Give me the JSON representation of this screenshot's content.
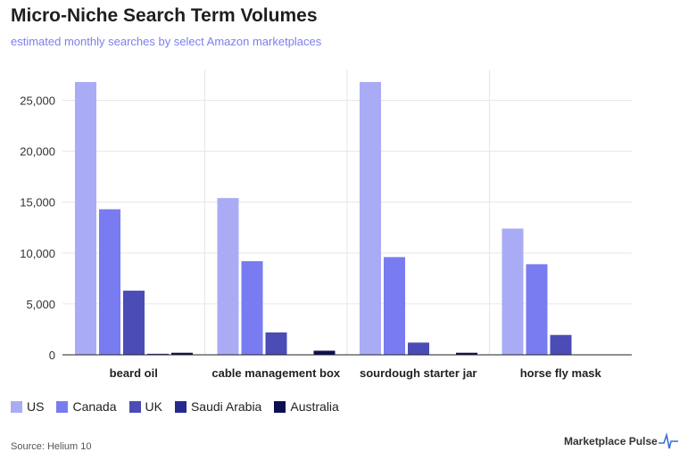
{
  "title": "Micro-Niche Search Term Volumes",
  "subtitle": "estimated monthly searches by select Amazon marketplaces",
  "source": "Source: Helium 10",
  "brand": "Marketplace Pulse",
  "brand_icon": "pulse-line-icon",
  "chart_data": {
    "type": "bar",
    "categories": [
      "beard oil",
      "cable management box",
      "sourdough starter jar",
      "horse fly mask"
    ],
    "series": [
      {
        "name": "US",
        "color": "#a9acf5",
        "values": [
          26800,
          15400,
          26800,
          12400
        ]
      },
      {
        "name": "Canada",
        "color": "#787cf0",
        "values": [
          14300,
          9200,
          9600,
          8900
        ]
      },
      {
        "name": "UK",
        "color": "#4b4cb5",
        "values": [
          6300,
          2200,
          1200,
          1950
        ]
      },
      {
        "name": "Saudi Arabia",
        "color": "#262a8f",
        "values": [
          100,
          0,
          0,
          0
        ]
      },
      {
        "name": "Australia",
        "color": "#0e0e52",
        "values": [
          200,
          400,
          200,
          0
        ]
      }
    ],
    "yticks": [
      "0",
      "5,000",
      "10,000",
      "15,000",
      "20,000",
      "25,000"
    ],
    "ytick_values": [
      0,
      5000,
      10000,
      15000,
      20000,
      25000
    ],
    "ylim": [
      0,
      27500
    ],
    "xlabel": "",
    "ylabel": "",
    "grid": true,
    "legend_position": "bottom-left"
  }
}
